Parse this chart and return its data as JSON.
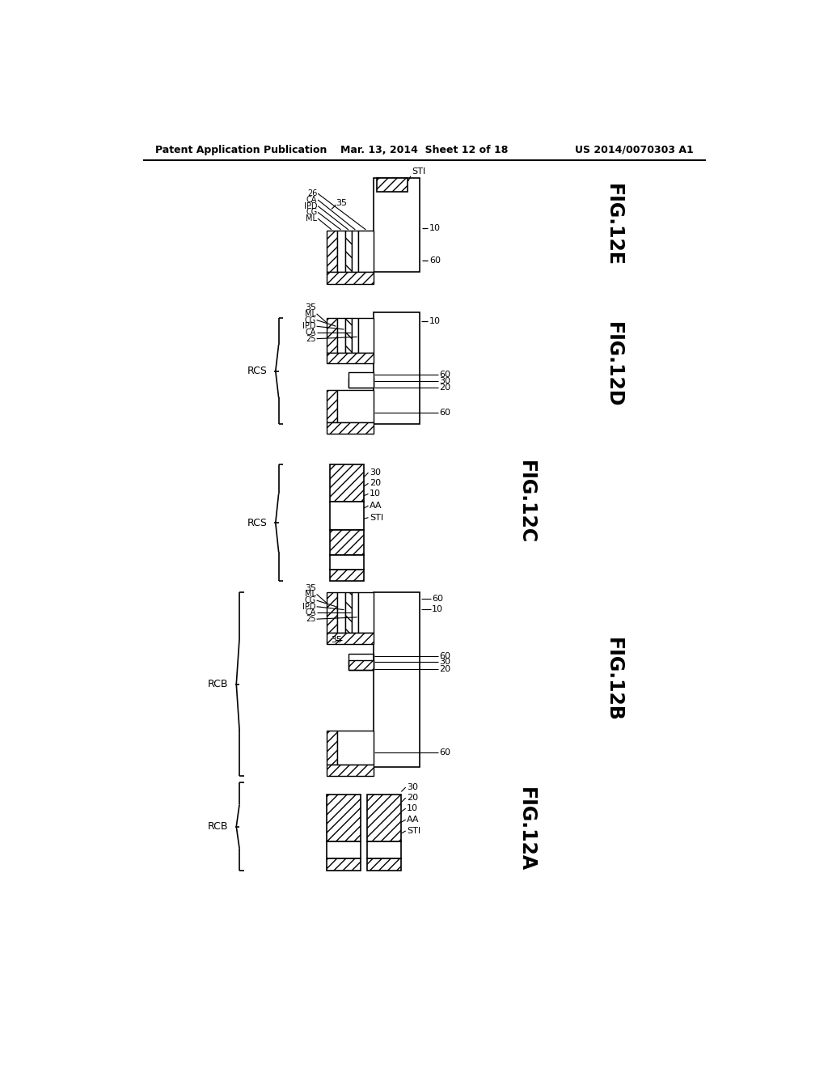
{
  "bg_color": "#ffffff",
  "header_left": "Patent Application Publication",
  "header_center": "Mar. 13, 2014  Sheet 12 of 18",
  "header_right": "US 2014/0070303 A1"
}
